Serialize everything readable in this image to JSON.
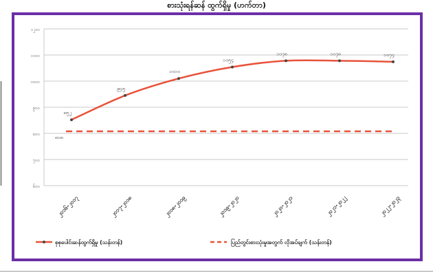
{
  "chart_data": {
    "type": "line",
    "title": "စားသုံးရန်ဆန် ထွက်ရှိမှု (ဟက်တာ)",
    "categories": [
      "၂၀၁၆-၂၀၁၇",
      "၂၀၁၇-၂၀၁၈",
      "၂၀၁၈-၂၀၁၉",
      "၂၀၁၉-၂၀၂၀",
      "၂၀၂၀-၂၀၂၁",
      "၂၀၂၁-၂၀၂၂",
      "၂၀၂၂-၂၀၂၃"
    ],
    "yticks": [
      "၁၂၀၀",
      "၁၁၀၀",
      "၁၀၀၀",
      "၉၀၀",
      "၈၀၀",
      "၇၀၀",
      "၆၀၀"
    ],
    "ylim": [
      600,
      1200
    ],
    "grid": true,
    "legend_position": "bottom",
    "series": [
      {
        "name": "စုစုပေါင်းဆန်ထွက်ရှိမှု (သန်းတန်)",
        "style": "solid",
        "color": "#e8523a",
        "values": [
          852,
          945,
          1010,
          1054,
          1078,
          1078,
          1074
        ],
        "labels": [
          "၈၅၂",
          "၉၄၅",
          "၁၀၁၀",
          "၁၀၅၄",
          "၁၀၇၈",
          "၁၀၇၈",
          "၁၀၇၄"
        ]
      },
      {
        "name": "ပြည်တွင်းစားသုံးမှုအတွက် လိုအပ်ချက် (သန်းတန်)",
        "style": "dashed",
        "color": "#e8523a",
        "values": [
          808,
          808,
          808,
          808,
          808,
          808,
          808
        ],
        "labels": [
          "၈၀၈"
        ]
      }
    ]
  }
}
